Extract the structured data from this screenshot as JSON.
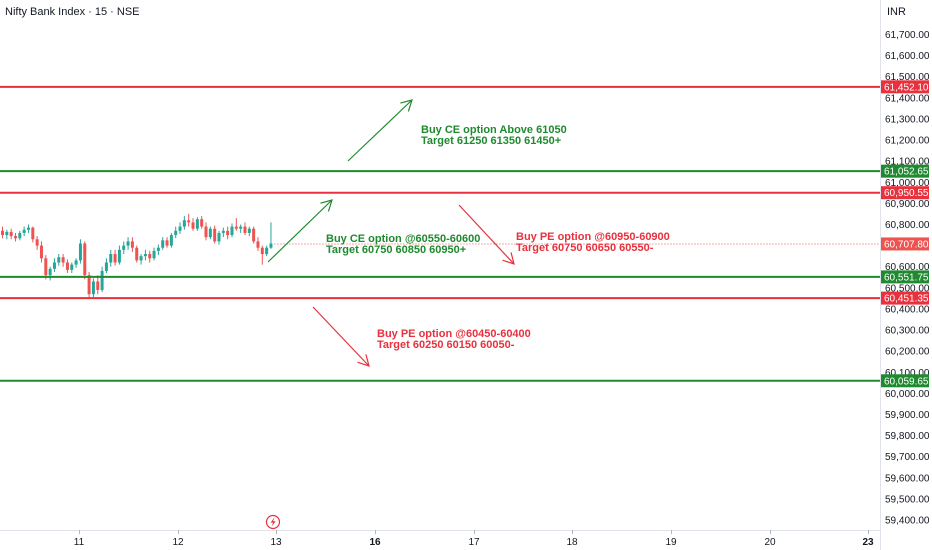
{
  "header": {
    "title": "Nifty Bank Index · 15 · NSE",
    "currency": "INR"
  },
  "colors": {
    "support": "#1f8a2f",
    "resistance": "#e8313d",
    "up_candle": "#26a69a",
    "down_candle": "#ef5350",
    "axis_text": "#131722",
    "grid": "#e0e3eb"
  },
  "icons": {
    "event_marker": "lightning-icon"
  },
  "chart_data": {
    "type": "candlestick",
    "x_ticks": [
      {
        "label": "11",
        "bold": false
      },
      {
        "label": "12",
        "bold": false
      },
      {
        "label": "13",
        "bold": false
      },
      {
        "label": "16",
        "bold": true
      },
      {
        "label": "17",
        "bold": false
      },
      {
        "label": "18",
        "bold": false
      },
      {
        "label": "19",
        "bold": false
      },
      {
        "label": "20",
        "bold": false
      },
      {
        "label": "23",
        "bold": true
      }
    ],
    "y_ticks": [
      "61,700.00",
      "61,600.00",
      "61,500.00",
      "61,400.00",
      "61,300.00",
      "61,200.00",
      "61,100.00",
      "61,000.00",
      "60,900.00",
      "60,800.00",
      "60,600.00",
      "60,500.00",
      "60,400.00",
      "60,300.00",
      "60,200.00",
      "60,100.00",
      "60,000.00",
      "59,900.00",
      "59,800.00",
      "59,700.00",
      "59,600.00",
      "59,500.00",
      "59,400.00"
    ],
    "y_tick_values": [
      61700,
      61600,
      61500,
      61400,
      61300,
      61200,
      61100,
      61000,
      60900,
      60800,
      60600,
      60500,
      60400,
      60300,
      60200,
      60100,
      60000,
      59900,
      59800,
      59700,
      59600,
      59500,
      59400
    ],
    "ylim": [
      59340,
      61840
    ],
    "horizontal_levels": [
      {
        "label": "61,452.10",
        "value": 61452.1,
        "kind": "resistance"
      },
      {
        "label": "61,052.65",
        "value": 61052.65,
        "kind": "support"
      },
      {
        "label": "60,950.55",
        "value": 60950.55,
        "kind": "resistance"
      },
      {
        "label": "60,551.75",
        "value": 60551.75,
        "kind": "support"
      },
      {
        "label": "60,451.35",
        "value": 60451.35,
        "kind": "resistance"
      },
      {
        "label": "60,059.65",
        "value": 60059.65,
        "kind": "support"
      }
    ],
    "last_price": {
      "label": "60,707.80",
      "value": 60707.8
    },
    "annotations": [
      {
        "lines": [
          "Buy CE option Above 61050",
          "Target 61250 61350 61450+"
        ],
        "kind": "support"
      },
      {
        "lines": [
          "Buy CE option @60550-60600",
          "Target 60750 60850 60950+"
        ],
        "kind": "support"
      },
      {
        "lines": [
          "Buy PE option @60950-60900",
          "Target 60750 60650 60550-"
        ],
        "kind": "resistance"
      },
      {
        "lines": [
          "Buy PE option @60450-60400",
          "Target 60250 60150 60050-"
        ],
        "kind": "resistance"
      }
    ],
    "candles": [
      {
        "o": 60770,
        "h": 60790,
        "c": 60750,
        "l": 60735
      },
      {
        "o": 60750,
        "h": 60775,
        "c": 60765,
        "l": 60730
      },
      {
        "o": 60765,
        "h": 60780,
        "c": 60745,
        "l": 60730
      },
      {
        "o": 60745,
        "h": 60760,
        "c": 60735,
        "l": 60720
      },
      {
        "o": 60735,
        "h": 60770,
        "c": 60760,
        "l": 60725
      },
      {
        "o": 60760,
        "h": 60790,
        "c": 60775,
        "l": 60745
      },
      {
        "o": 60775,
        "h": 60800,
        "c": 60785,
        "l": 60760
      },
      {
        "o": 60785,
        "h": 60790,
        "c": 60730,
        "l": 60715
      },
      {
        "o": 60730,
        "h": 60745,
        "c": 60700,
        "l": 60680
      },
      {
        "o": 60700,
        "h": 60720,
        "c": 60640,
        "l": 60620
      },
      {
        "o": 60640,
        "h": 60655,
        "c": 60560,
        "l": 60540
      },
      {
        "o": 60560,
        "h": 60600,
        "c": 60590,
        "l": 60535
      },
      {
        "o": 60590,
        "h": 60640,
        "c": 60620,
        "l": 60575
      },
      {
        "o": 60620,
        "h": 60660,
        "c": 60645,
        "l": 60605
      },
      {
        "o": 60645,
        "h": 60660,
        "c": 60620,
        "l": 60600
      },
      {
        "o": 60620,
        "h": 60635,
        "c": 60585,
        "l": 60570
      },
      {
        "o": 60585,
        "h": 60620,
        "c": 60610,
        "l": 60570
      },
      {
        "o": 60610,
        "h": 60640,
        "c": 60630,
        "l": 60595
      },
      {
        "o": 60630,
        "h": 60730,
        "c": 60710,
        "l": 60615
      },
      {
        "o": 60710,
        "h": 60720,
        "c": 60560,
        "l": 60540
      },
      {
        "o": 60560,
        "h": 60575,
        "c": 60470,
        "l": 60450
      },
      {
        "o": 60470,
        "h": 60545,
        "c": 60530,
        "l": 60455
      },
      {
        "o": 60530,
        "h": 60560,
        "c": 60490,
        "l": 60470
      },
      {
        "o": 60490,
        "h": 60600,
        "c": 60580,
        "l": 60480
      },
      {
        "o": 60580,
        "h": 60640,
        "c": 60620,
        "l": 60570
      },
      {
        "o": 60620,
        "h": 60680,
        "c": 60660,
        "l": 60600
      },
      {
        "o": 60660,
        "h": 60680,
        "c": 60620,
        "l": 60605
      },
      {
        "o": 60620,
        "h": 60700,
        "c": 60680,
        "l": 60610
      },
      {
        "o": 60680,
        "h": 60720,
        "c": 60700,
        "l": 60660
      },
      {
        "o": 60700,
        "h": 60740,
        "c": 60720,
        "l": 60680
      },
      {
        "o": 60720,
        "h": 60740,
        "c": 60690,
        "l": 60670
      },
      {
        "o": 60690,
        "h": 60700,
        "c": 60630,
        "l": 60620
      },
      {
        "o": 60630,
        "h": 60660,
        "c": 60650,
        "l": 60610
      },
      {
        "o": 60650,
        "h": 60680,
        "c": 60660,
        "l": 60630
      },
      {
        "o": 60660,
        "h": 60675,
        "c": 60640,
        "l": 60620
      },
      {
        "o": 60640,
        "h": 60690,
        "c": 60675,
        "l": 60630
      },
      {
        "o": 60675,
        "h": 60705,
        "c": 60690,
        "l": 60655
      },
      {
        "o": 60690,
        "h": 60740,
        "c": 60725,
        "l": 60680
      },
      {
        "o": 60725,
        "h": 60740,
        "c": 60700,
        "l": 60690
      },
      {
        "o": 60700,
        "h": 60760,
        "c": 60750,
        "l": 60690
      },
      {
        "o": 60750,
        "h": 60790,
        "c": 60770,
        "l": 60735
      },
      {
        "o": 60770,
        "h": 60810,
        "c": 60790,
        "l": 60755
      },
      {
        "o": 60790,
        "h": 60840,
        "c": 60820,
        "l": 60775
      },
      {
        "o": 60820,
        "h": 60850,
        "c": 60810,
        "l": 60790
      },
      {
        "o": 60810,
        "h": 60830,
        "c": 60780,
        "l": 60770
      },
      {
        "o": 60780,
        "h": 60835,
        "c": 60825,
        "l": 60770
      },
      {
        "o": 60825,
        "h": 60840,
        "c": 60790,
        "l": 60780
      },
      {
        "o": 60790,
        "h": 60810,
        "c": 60740,
        "l": 60725
      },
      {
        "o": 60740,
        "h": 60790,
        "c": 60780,
        "l": 60730
      },
      {
        "o": 60780,
        "h": 60795,
        "c": 60720,
        "l": 60710
      },
      {
        "o": 60720,
        "h": 60770,
        "c": 60760,
        "l": 60705
      },
      {
        "o": 60760,
        "h": 60785,
        "c": 60770,
        "l": 60740
      },
      {
        "o": 60770,
        "h": 60790,
        "c": 60750,
        "l": 60730
      },
      {
        "o": 60750,
        "h": 60805,
        "c": 60790,
        "l": 60740
      },
      {
        "o": 60790,
        "h": 60830,
        "c": 60780,
        "l": 60770
      },
      {
        "o": 60780,
        "h": 60800,
        "c": 60790,
        "l": 60760
      },
      {
        "o": 60790,
        "h": 60810,
        "c": 60760,
        "l": 60750
      },
      {
        "o": 60760,
        "h": 60790,
        "c": 60780,
        "l": 60745
      },
      {
        "o": 60780,
        "h": 60790,
        "c": 60720,
        "l": 60710
      },
      {
        "o": 60720,
        "h": 60740,
        "c": 60690,
        "l": 60675
      },
      {
        "o": 60690,
        "h": 60700,
        "c": 60660,
        "l": 60610
      },
      {
        "o": 60660,
        "h": 60700,
        "c": 60690,
        "l": 60650
      },
      {
        "o": 60690,
        "h": 60810,
        "c": 60710,
        "l": 60685
      }
    ]
  }
}
